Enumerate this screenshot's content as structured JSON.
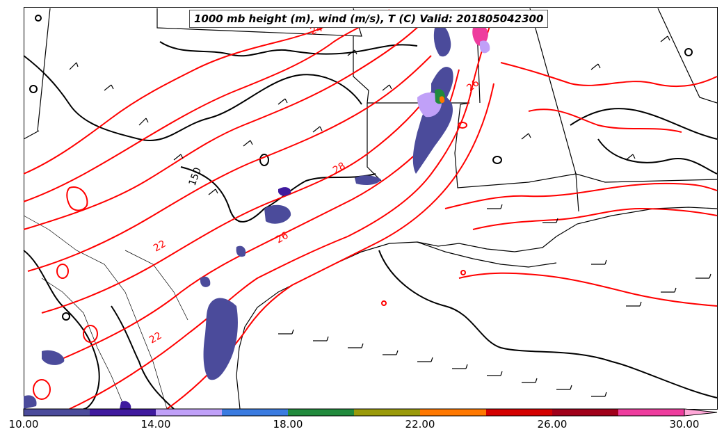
{
  "title": "1000 mb height (m), wind (m/s), T (C) Valid: 201805042300",
  "colorbar": {
    "colors": [
      "#4b4b9b",
      "#3f1a9e",
      "#c0a0f8",
      "#3a7be0",
      "#218a3c",
      "#9a9a0a",
      "#ff7800",
      "#d40000",
      "#a0001a",
      "#ee3c9e",
      "#ffa8d8"
    ],
    "tick_labels": [
      "10.00",
      "14.00",
      "18.00",
      "22.00",
      "26.00",
      "30.00"
    ]
  },
  "contour_labels": {
    "height": [
      "150"
    ],
    "temperature": [
      "24",
      "26",
      "28",
      "26",
      "22",
      "22"
    ]
  },
  "colors": {
    "temperature_contour": "#ff0000",
    "height_contour": "#000000",
    "boundaries": "#000000"
  },
  "icons": [
    "wind-barb-icon"
  ]
}
